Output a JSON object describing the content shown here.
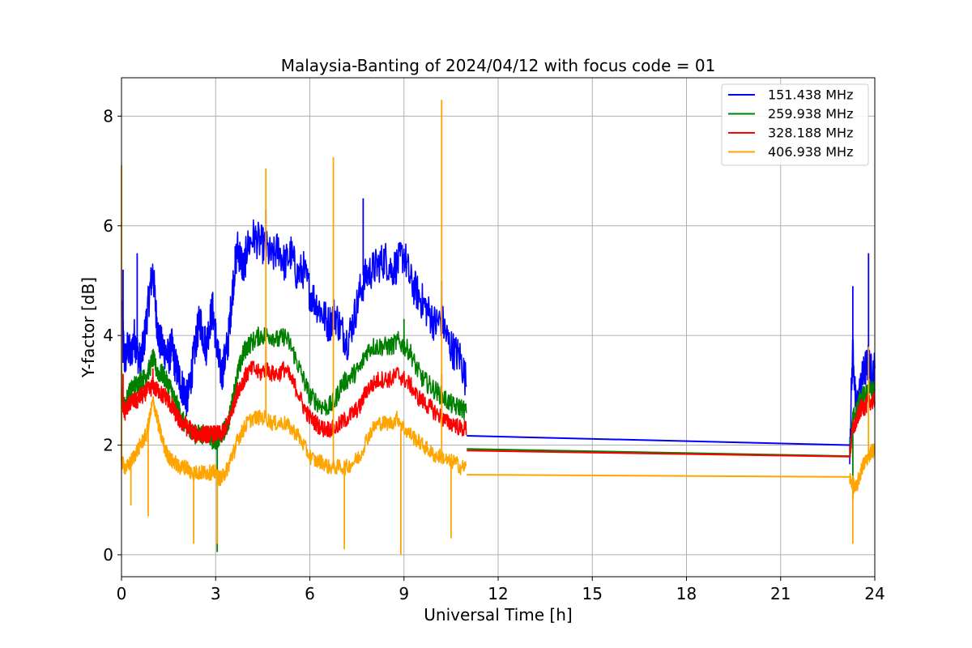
{
  "chart_data": {
    "type": "line",
    "title": "Malaysia-Banting of 2024/04/12 with focus code = 01",
    "xlabel": "Universal Time [h]",
    "ylabel": "Y-factor [dB]",
    "xlim": [
      0,
      24
    ],
    "ylim": [
      -0.4,
      8.7
    ],
    "xticks": [
      0,
      3,
      6,
      9,
      12,
      15,
      18,
      21,
      24
    ],
    "yticks": [
      0,
      2,
      4,
      6,
      8
    ],
    "grid": true,
    "legend_position": "top-right",
    "series": [
      {
        "name": "151.438 MHz",
        "color": "#0000ff",
        "x": [
          0.0,
          0.1,
          0.2,
          0.3,
          0.4,
          0.5,
          0.6,
          0.7,
          0.8,
          0.9,
          1.0,
          1.1,
          1.2,
          1.3,
          1.4,
          1.5,
          1.6,
          1.7,
          1.8,
          1.9,
          2.0,
          2.1,
          2.2,
          2.3,
          2.4,
          2.5,
          2.6,
          2.7,
          2.8,
          2.9,
          3.0,
          3.1,
          3.2,
          3.3,
          3.4,
          3.5,
          3.6,
          3.7,
          3.8,
          3.9,
          4.0,
          4.2,
          4.4,
          4.6,
          4.8,
          5.0,
          5.2,
          5.4,
          5.6,
          5.8,
          6.0,
          6.2,
          6.4,
          6.6,
          6.8,
          7.0,
          7.2,
          7.4,
          7.6,
          7.8,
          8.0,
          8.2,
          8.4,
          8.6,
          8.8,
          9.0,
          9.2,
          9.4,
          9.6,
          9.8,
          10.0,
          10.2,
          10.4,
          10.6,
          10.8,
          11.0,
          23.2,
          23.3,
          23.4,
          23.5,
          23.6,
          23.7,
          23.8,
          23.9,
          24.0
        ],
        "y": [
          4.5,
          3.5,
          3.8,
          3.6,
          4.0,
          3.7,
          3.5,
          3.8,
          4.3,
          4.8,
          5.2,
          4.4,
          3.9,
          3.8,
          3.7,
          3.6,
          3.8,
          3.5,
          3.3,
          3.1,
          3.0,
          2.8,
          3.2,
          3.6,
          4.0,
          4.3,
          4.0,
          3.8,
          4.2,
          4.5,
          4.0,
          3.5,
          3.3,
          3.6,
          3.9,
          4.6,
          5.2,
          5.6,
          5.4,
          5.2,
          5.6,
          5.8,
          5.7,
          5.6,
          5.4,
          5.6,
          5.3,
          5.5,
          5.1,
          5.2,
          4.8,
          4.6,
          4.4,
          4.2,
          4.4,
          4.1,
          3.9,
          4.3,
          4.8,
          5.1,
          5.2,
          5.3,
          5.4,
          5.2,
          5.3,
          5.5,
          5.0,
          4.8,
          4.6,
          4.4,
          4.2,
          4.3,
          3.9,
          3.7,
          3.6,
          3.1,
          2.0,
          3.8,
          2.6,
          2.9,
          3.2,
          3.4,
          3.5,
          3.3,
          3.4
        ],
        "spikes": [
          [
            0.05,
            5.2
          ],
          [
            0.5,
            5.5
          ],
          [
            4.6,
            6.3
          ],
          [
            7.7,
            6.5
          ],
          [
            10.2,
            5.0
          ],
          [
            23.3,
            4.9
          ],
          [
            23.8,
            5.5
          ]
        ]
      },
      {
        "name": "259.938 MHz",
        "color": "#008000",
        "x": [
          0.0,
          0.1,
          0.2,
          0.3,
          0.4,
          0.5,
          0.6,
          0.7,
          0.8,
          0.9,
          1.0,
          1.1,
          1.2,
          1.3,
          1.4,
          1.5,
          1.6,
          1.7,
          1.8,
          1.9,
          2.0,
          2.1,
          2.2,
          2.3,
          2.4,
          2.5,
          2.6,
          2.7,
          2.8,
          2.9,
          3.0,
          3.1,
          3.2,
          3.3,
          3.4,
          3.5,
          3.6,
          3.7,
          3.8,
          3.9,
          4.0,
          4.2,
          4.4,
          4.6,
          4.8,
          5.0,
          5.2,
          5.4,
          5.6,
          5.8,
          6.0,
          6.2,
          6.4,
          6.6,
          6.8,
          7.0,
          7.2,
          7.4,
          7.6,
          7.8,
          8.0,
          8.2,
          8.4,
          8.6,
          8.8,
          9.0,
          9.2,
          9.4,
          9.6,
          9.8,
          10.0,
          10.2,
          10.4,
          10.6,
          10.8,
          11.0,
          23.2,
          23.3,
          23.4,
          23.5,
          23.6,
          23.7,
          23.8,
          23.9,
          24.0
        ],
        "y": [
          3.0,
          2.7,
          2.9,
          3.0,
          3.1,
          3.1,
          3.2,
          3.2,
          3.3,
          3.4,
          3.6,
          3.4,
          3.3,
          3.3,
          3.2,
          3.1,
          3.0,
          2.8,
          2.7,
          2.5,
          2.4,
          2.3,
          2.3,
          2.2,
          2.2,
          2.2,
          2.2,
          2.2,
          2.2,
          2.1,
          2.1,
          2.1,
          2.2,
          2.3,
          2.4,
          2.7,
          3.0,
          3.3,
          3.5,
          3.7,
          3.8,
          3.9,
          4.0,
          4.0,
          4.0,
          3.9,
          4.0,
          3.8,
          3.5,
          3.2,
          2.9,
          2.8,
          2.7,
          2.7,
          2.8,
          3.1,
          3.2,
          3.3,
          3.4,
          3.7,
          3.8,
          3.8,
          3.8,
          3.8,
          3.9,
          3.8,
          3.7,
          3.4,
          3.2,
          3.1,
          3.0,
          2.9,
          2.8,
          2.7,
          2.7,
          2.6,
          1.8,
          2.5,
          2.6,
          2.8,
          2.9,
          2.9,
          3.0,
          3.0,
          3.0
        ],
        "spikes": [
          [
            3.05,
            0.05
          ],
          [
            9.0,
            4.3
          ],
          [
            23.3,
            1.0
          ]
        ]
      },
      {
        "name": "328.188 MHz",
        "color": "#ff0000",
        "x": [
          0.0,
          0.1,
          0.2,
          0.3,
          0.4,
          0.5,
          0.6,
          0.7,
          0.8,
          0.9,
          1.0,
          1.1,
          1.2,
          1.3,
          1.4,
          1.5,
          1.6,
          1.7,
          1.8,
          1.9,
          2.0,
          2.1,
          2.2,
          2.3,
          2.4,
          2.5,
          2.6,
          2.7,
          2.8,
          2.9,
          3.0,
          3.1,
          3.2,
          3.3,
          3.4,
          3.5,
          3.6,
          3.7,
          3.8,
          3.9,
          4.0,
          4.2,
          4.4,
          4.6,
          4.8,
          5.0,
          5.2,
          5.4,
          5.6,
          5.8,
          6.0,
          6.2,
          6.4,
          6.6,
          6.8,
          7.0,
          7.2,
          7.4,
          7.6,
          7.8,
          8.0,
          8.2,
          8.4,
          8.6,
          8.8,
          9.0,
          9.2,
          9.4,
          9.6,
          9.8,
          10.0,
          10.2,
          10.4,
          10.6,
          10.8,
          11.0,
          23.2,
          23.3,
          23.4,
          23.5,
          23.6,
          23.7,
          23.8,
          23.9,
          24.0
        ],
        "y": [
          2.9,
          2.6,
          2.7,
          2.8,
          2.8,
          2.8,
          2.9,
          2.9,
          3.0,
          3.0,
          3.1,
          3.0,
          3.0,
          2.9,
          2.9,
          2.8,
          2.7,
          2.6,
          2.5,
          2.4,
          2.4,
          2.3,
          2.3,
          2.2,
          2.2,
          2.2,
          2.2,
          2.2,
          2.2,
          2.2,
          2.2,
          2.2,
          2.2,
          2.3,
          2.4,
          2.6,
          2.8,
          3.0,
          3.1,
          3.2,
          3.3,
          3.4,
          3.3,
          3.4,
          3.3,
          3.3,
          3.4,
          3.2,
          3.0,
          2.7,
          2.5,
          2.4,
          2.3,
          2.3,
          2.3,
          2.4,
          2.5,
          2.6,
          2.7,
          3.0,
          3.1,
          3.2,
          3.2,
          3.2,
          3.3,
          3.2,
          3.1,
          2.9,
          2.8,
          2.7,
          2.6,
          2.5,
          2.4,
          2.4,
          2.3,
          2.3,
          1.8,
          2.3,
          2.4,
          2.6,
          2.7,
          2.7,
          2.8,
          2.8,
          2.8
        ],
        "spikes": [
          [
            0.05,
            3.3
          ],
          [
            1.0,
            3.4
          ],
          [
            4.6,
            3.8
          ],
          [
            10.2,
            3.3
          ]
        ]
      },
      {
        "name": "406.938 MHz",
        "color": "#ffa500",
        "x": [
          0.0,
          0.1,
          0.2,
          0.3,
          0.4,
          0.5,
          0.6,
          0.7,
          0.8,
          0.9,
          1.0,
          1.1,
          1.2,
          1.3,
          1.4,
          1.5,
          1.6,
          1.7,
          1.8,
          1.9,
          2.0,
          2.1,
          2.2,
          2.3,
          2.4,
          2.5,
          2.6,
          2.7,
          2.8,
          2.9,
          3.0,
          3.1,
          3.2,
          3.3,
          3.4,
          3.5,
          3.6,
          3.7,
          3.8,
          3.9,
          4.0,
          4.2,
          4.4,
          4.6,
          4.8,
          5.0,
          5.2,
          5.4,
          5.6,
          5.8,
          6.0,
          6.2,
          6.4,
          6.6,
          6.8,
          7.0,
          7.2,
          7.4,
          7.6,
          7.8,
          8.0,
          8.2,
          8.4,
          8.6,
          8.8,
          9.0,
          9.2,
          9.4,
          9.6,
          9.8,
          10.0,
          10.2,
          10.4,
          10.6,
          10.8,
          11.0,
          23.2,
          23.3,
          23.4,
          23.5,
          23.6,
          23.7,
          23.8,
          23.9,
          24.0
        ],
        "y": [
          1.7,
          1.6,
          1.6,
          1.7,
          1.8,
          1.9,
          2.0,
          2.1,
          2.2,
          2.5,
          2.8,
          2.6,
          2.3,
          2.1,
          1.9,
          1.8,
          1.7,
          1.7,
          1.6,
          1.6,
          1.6,
          1.6,
          1.5,
          1.5,
          1.5,
          1.5,
          1.5,
          1.5,
          1.5,
          1.5,
          1.5,
          1.4,
          1.4,
          1.5,
          1.6,
          1.8,
          1.9,
          2.1,
          2.2,
          2.3,
          2.4,
          2.5,
          2.5,
          2.5,
          2.4,
          2.4,
          2.4,
          2.3,
          2.2,
          2.0,
          1.8,
          1.7,
          1.7,
          1.6,
          1.6,
          1.6,
          1.6,
          1.7,
          1.8,
          2.1,
          2.3,
          2.4,
          2.4,
          2.4,
          2.5,
          2.3,
          2.2,
          2.1,
          2.0,
          1.9,
          1.8,
          1.8,
          1.7,
          1.7,
          1.6,
          1.6,
          1.4,
          1.3,
          1.2,
          1.4,
          1.6,
          1.7,
          1.8,
          1.9,
          1.9
        ],
        "spikes": [
          [
            0.0,
            7.1
          ],
          [
            0.3,
            0.9
          ],
          [
            0.85,
            0.7
          ],
          [
            2.3,
            0.2
          ],
          [
            3.05,
            0.2
          ],
          [
            4.6,
            7.05
          ],
          [
            6.75,
            7.25
          ],
          [
            7.1,
            0.1
          ],
          [
            8.9,
            0.0
          ],
          [
            10.2,
            8.3
          ],
          [
            10.5,
            0.3
          ],
          [
            23.3,
            0.2
          ],
          [
            23.8,
            3.8
          ]
        ]
      }
    ],
    "segments_after_gap": [
      {
        "series": "151.438 MHz",
        "x": [
          11.0,
          23.2
        ],
        "y": [
          2.17,
          2.0
        ]
      },
      {
        "series": "259.938 MHz",
        "x": [
          11.0,
          23.2
        ],
        "y": [
          1.93,
          1.8
        ]
      },
      {
        "series": "328.188 MHz",
        "x": [
          11.0,
          23.2
        ],
        "y": [
          1.9,
          1.79
        ]
      },
      {
        "series": "406.938 MHz",
        "x": [
          11.0,
          23.2
        ],
        "y": [
          1.46,
          1.42
        ]
      }
    ]
  }
}
